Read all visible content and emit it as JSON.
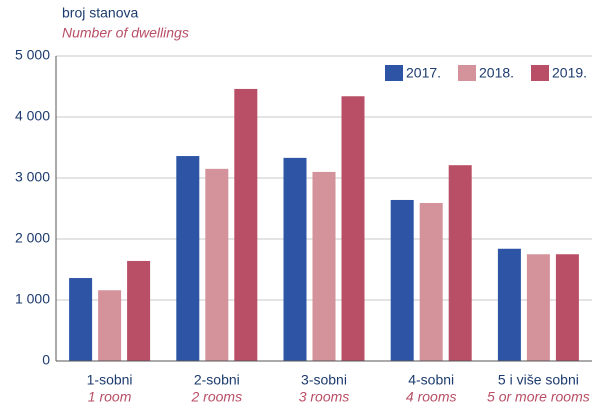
{
  "chart_data": {
    "type": "bar",
    "y_label": "broj stanova",
    "y_label_en": "Number of dwellings",
    "categories": [
      "1-sobni",
      "2-sobni",
      "3-sobni",
      "4-sobni",
      "5 i više sobni"
    ],
    "categories_en": [
      "1 room",
      "2 rooms",
      "3 rooms",
      "4 rooms",
      "5 or more rooms"
    ],
    "series": [
      {
        "name": "2017.",
        "color": "#2e55a5",
        "values": [
          1360,
          3360,
          3330,
          2640,
          1840
        ]
      },
      {
        "name": "2018.",
        "color": "#d4939a",
        "values": [
          1160,
          3150,
          3100,
          2590,
          1750
        ]
      },
      {
        "name": "2019.",
        "color": "#b84f66",
        "values": [
          1640,
          4460,
          4340,
          3210,
          1750
        ]
      }
    ],
    "ylim": [
      0,
      5000
    ],
    "yticks": [
      0,
      {
        "value": 1000,
        "label": "1 000"
      },
      {
        "value": 2000,
        "label": "2 000"
      },
      {
        "value": 3000,
        "label": "3 000"
      },
      {
        "value": 4000,
        "label": "4 000"
      },
      {
        "value": 5000,
        "label": "5 000"
      }
    ],
    "grid": true,
    "legend": "top-right"
  }
}
